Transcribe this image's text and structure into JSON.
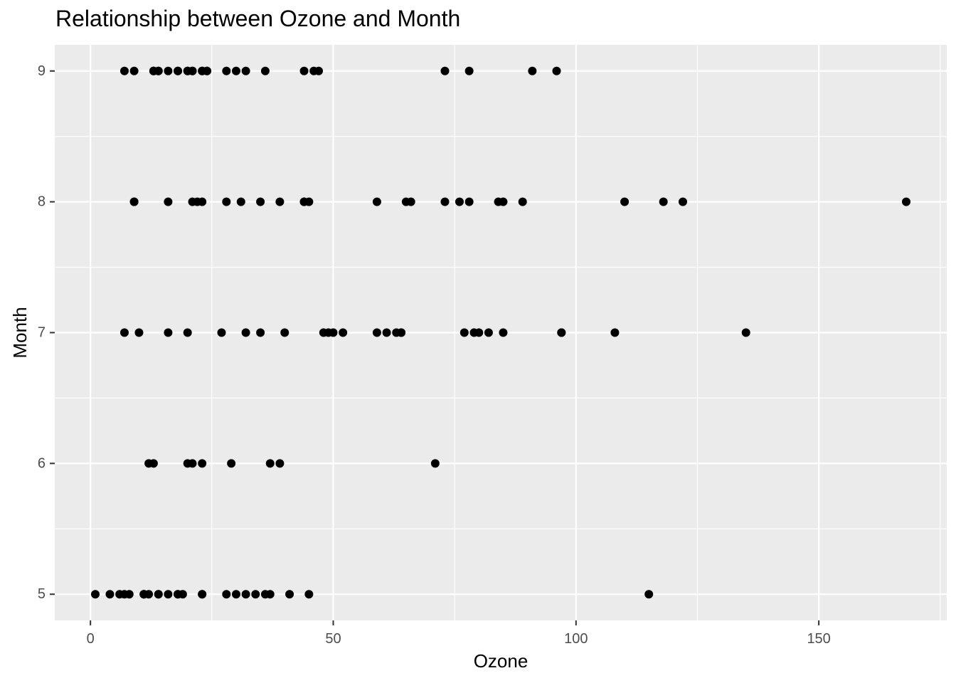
{
  "chart_data": {
    "type": "scatter",
    "title": "Relationship between Ozone and Month",
    "xlabel": "Ozone",
    "ylabel": "Month",
    "xlim": [
      -7.35,
      176.35
    ],
    "ylim": [
      4.8,
      9.2
    ],
    "x_ticks": [
      0,
      50,
      100,
      150
    ],
    "y_ticks": [
      5,
      6,
      7,
      8,
      9
    ],
    "grid": true,
    "colors": {
      "panel": "#ebebeb",
      "grid": "#ffffff",
      "point": "#000000"
    },
    "points": [
      {
        "x": 41,
        "y": 5
      },
      {
        "x": 36,
        "y": 5
      },
      {
        "x": 12,
        "y": 5
      },
      {
        "x": 18,
        "y": 5
      },
      {
        "x": 28,
        "y": 5
      },
      {
        "x": 23,
        "y": 5
      },
      {
        "x": 19,
        "y": 5
      },
      {
        "x": 8,
        "y": 5
      },
      {
        "x": 7,
        "y": 5
      },
      {
        "x": 16,
        "y": 5
      },
      {
        "x": 11,
        "y": 5
      },
      {
        "x": 14,
        "y": 5
      },
      {
        "x": 18,
        "y": 5
      },
      {
        "x": 14,
        "y": 5
      },
      {
        "x": 34,
        "y": 5
      },
      {
        "x": 6,
        "y": 5
      },
      {
        "x": 30,
        "y": 5
      },
      {
        "x": 11,
        "y": 5
      },
      {
        "x": 1,
        "y": 5
      },
      {
        "x": 11,
        "y": 5
      },
      {
        "x": 4,
        "y": 5
      },
      {
        "x": 32,
        "y": 5
      },
      {
        "x": 23,
        "y": 5
      },
      {
        "x": 45,
        "y": 5
      },
      {
        "x": 115,
        "y": 5
      },
      {
        "x": 37,
        "y": 5
      },
      {
        "x": 29,
        "y": 6
      },
      {
        "x": 71,
        "y": 6
      },
      {
        "x": 39,
        "y": 6
      },
      {
        "x": 23,
        "y": 6
      },
      {
        "x": 21,
        "y": 6
      },
      {
        "x": 37,
        "y": 6
      },
      {
        "x": 20,
        "y": 6
      },
      {
        "x": 12,
        "y": 6
      },
      {
        "x": 13,
        "y": 6
      },
      {
        "x": 135,
        "y": 7
      },
      {
        "x": 49,
        "y": 7
      },
      {
        "x": 32,
        "y": 7
      },
      {
        "x": 64,
        "y": 7
      },
      {
        "x": 40,
        "y": 7
      },
      {
        "x": 77,
        "y": 7
      },
      {
        "x": 97,
        "y": 7
      },
      {
        "x": 97,
        "y": 7
      },
      {
        "x": 85,
        "y": 7
      },
      {
        "x": 10,
        "y": 7
      },
      {
        "x": 27,
        "y": 7
      },
      {
        "x": 7,
        "y": 7
      },
      {
        "x": 48,
        "y": 7
      },
      {
        "x": 35,
        "y": 7
      },
      {
        "x": 61,
        "y": 7
      },
      {
        "x": 79,
        "y": 7
      },
      {
        "x": 63,
        "y": 7
      },
      {
        "x": 16,
        "y": 7
      },
      {
        "x": 80,
        "y": 7
      },
      {
        "x": 108,
        "y": 7
      },
      {
        "x": 20,
        "y": 7
      },
      {
        "x": 52,
        "y": 7
      },
      {
        "x": 82,
        "y": 7
      },
      {
        "x": 50,
        "y": 7
      },
      {
        "x": 64,
        "y": 7
      },
      {
        "x": 59,
        "y": 7
      },
      {
        "x": 39,
        "y": 8
      },
      {
        "x": 9,
        "y": 8
      },
      {
        "x": 16,
        "y": 8
      },
      {
        "x": 78,
        "y": 8
      },
      {
        "x": 35,
        "y": 8
      },
      {
        "x": 66,
        "y": 8
      },
      {
        "x": 122,
        "y": 8
      },
      {
        "x": 89,
        "y": 8
      },
      {
        "x": 110,
        "y": 8
      },
      {
        "x": 44,
        "y": 8
      },
      {
        "x": 28,
        "y": 8
      },
      {
        "x": 65,
        "y": 8
      },
      {
        "x": 22,
        "y": 8
      },
      {
        "x": 59,
        "y": 8
      },
      {
        "x": 23,
        "y": 8
      },
      {
        "x": 31,
        "y": 8
      },
      {
        "x": 44,
        "y": 8
      },
      {
        "x": 21,
        "y": 8
      },
      {
        "x": 9,
        "y": 8
      },
      {
        "x": 45,
        "y": 8
      },
      {
        "x": 168,
        "y": 8
      },
      {
        "x": 73,
        "y": 8
      },
      {
        "x": 76,
        "y": 8
      },
      {
        "x": 118,
        "y": 8
      },
      {
        "x": 84,
        "y": 8
      },
      {
        "x": 85,
        "y": 8
      },
      {
        "x": 96,
        "y": 9
      },
      {
        "x": 78,
        "y": 9
      },
      {
        "x": 73,
        "y": 9
      },
      {
        "x": 91,
        "y": 9
      },
      {
        "x": 47,
        "y": 9
      },
      {
        "x": 32,
        "y": 9
      },
      {
        "x": 20,
        "y": 9
      },
      {
        "x": 23,
        "y": 9
      },
      {
        "x": 21,
        "y": 9
      },
      {
        "x": 24,
        "y": 9
      },
      {
        "x": 44,
        "y": 9
      },
      {
        "x": 21,
        "y": 9
      },
      {
        "x": 28,
        "y": 9
      },
      {
        "x": 9,
        "y": 9
      },
      {
        "x": 13,
        "y": 9
      },
      {
        "x": 46,
        "y": 9
      },
      {
        "x": 18,
        "y": 9
      },
      {
        "x": 13,
        "y": 9
      },
      {
        "x": 24,
        "y": 9
      },
      {
        "x": 16,
        "y": 9
      },
      {
        "x": 13,
        "y": 9
      },
      {
        "x": 23,
        "y": 9
      },
      {
        "x": 36,
        "y": 9
      },
      {
        "x": 7,
        "y": 9
      },
      {
        "x": 14,
        "y": 9
      },
      {
        "x": 30,
        "y": 9
      },
      {
        "x": 14,
        "y": 9
      },
      {
        "x": 18,
        "y": 9
      },
      {
        "x": 20,
        "y": 9
      }
    ]
  }
}
